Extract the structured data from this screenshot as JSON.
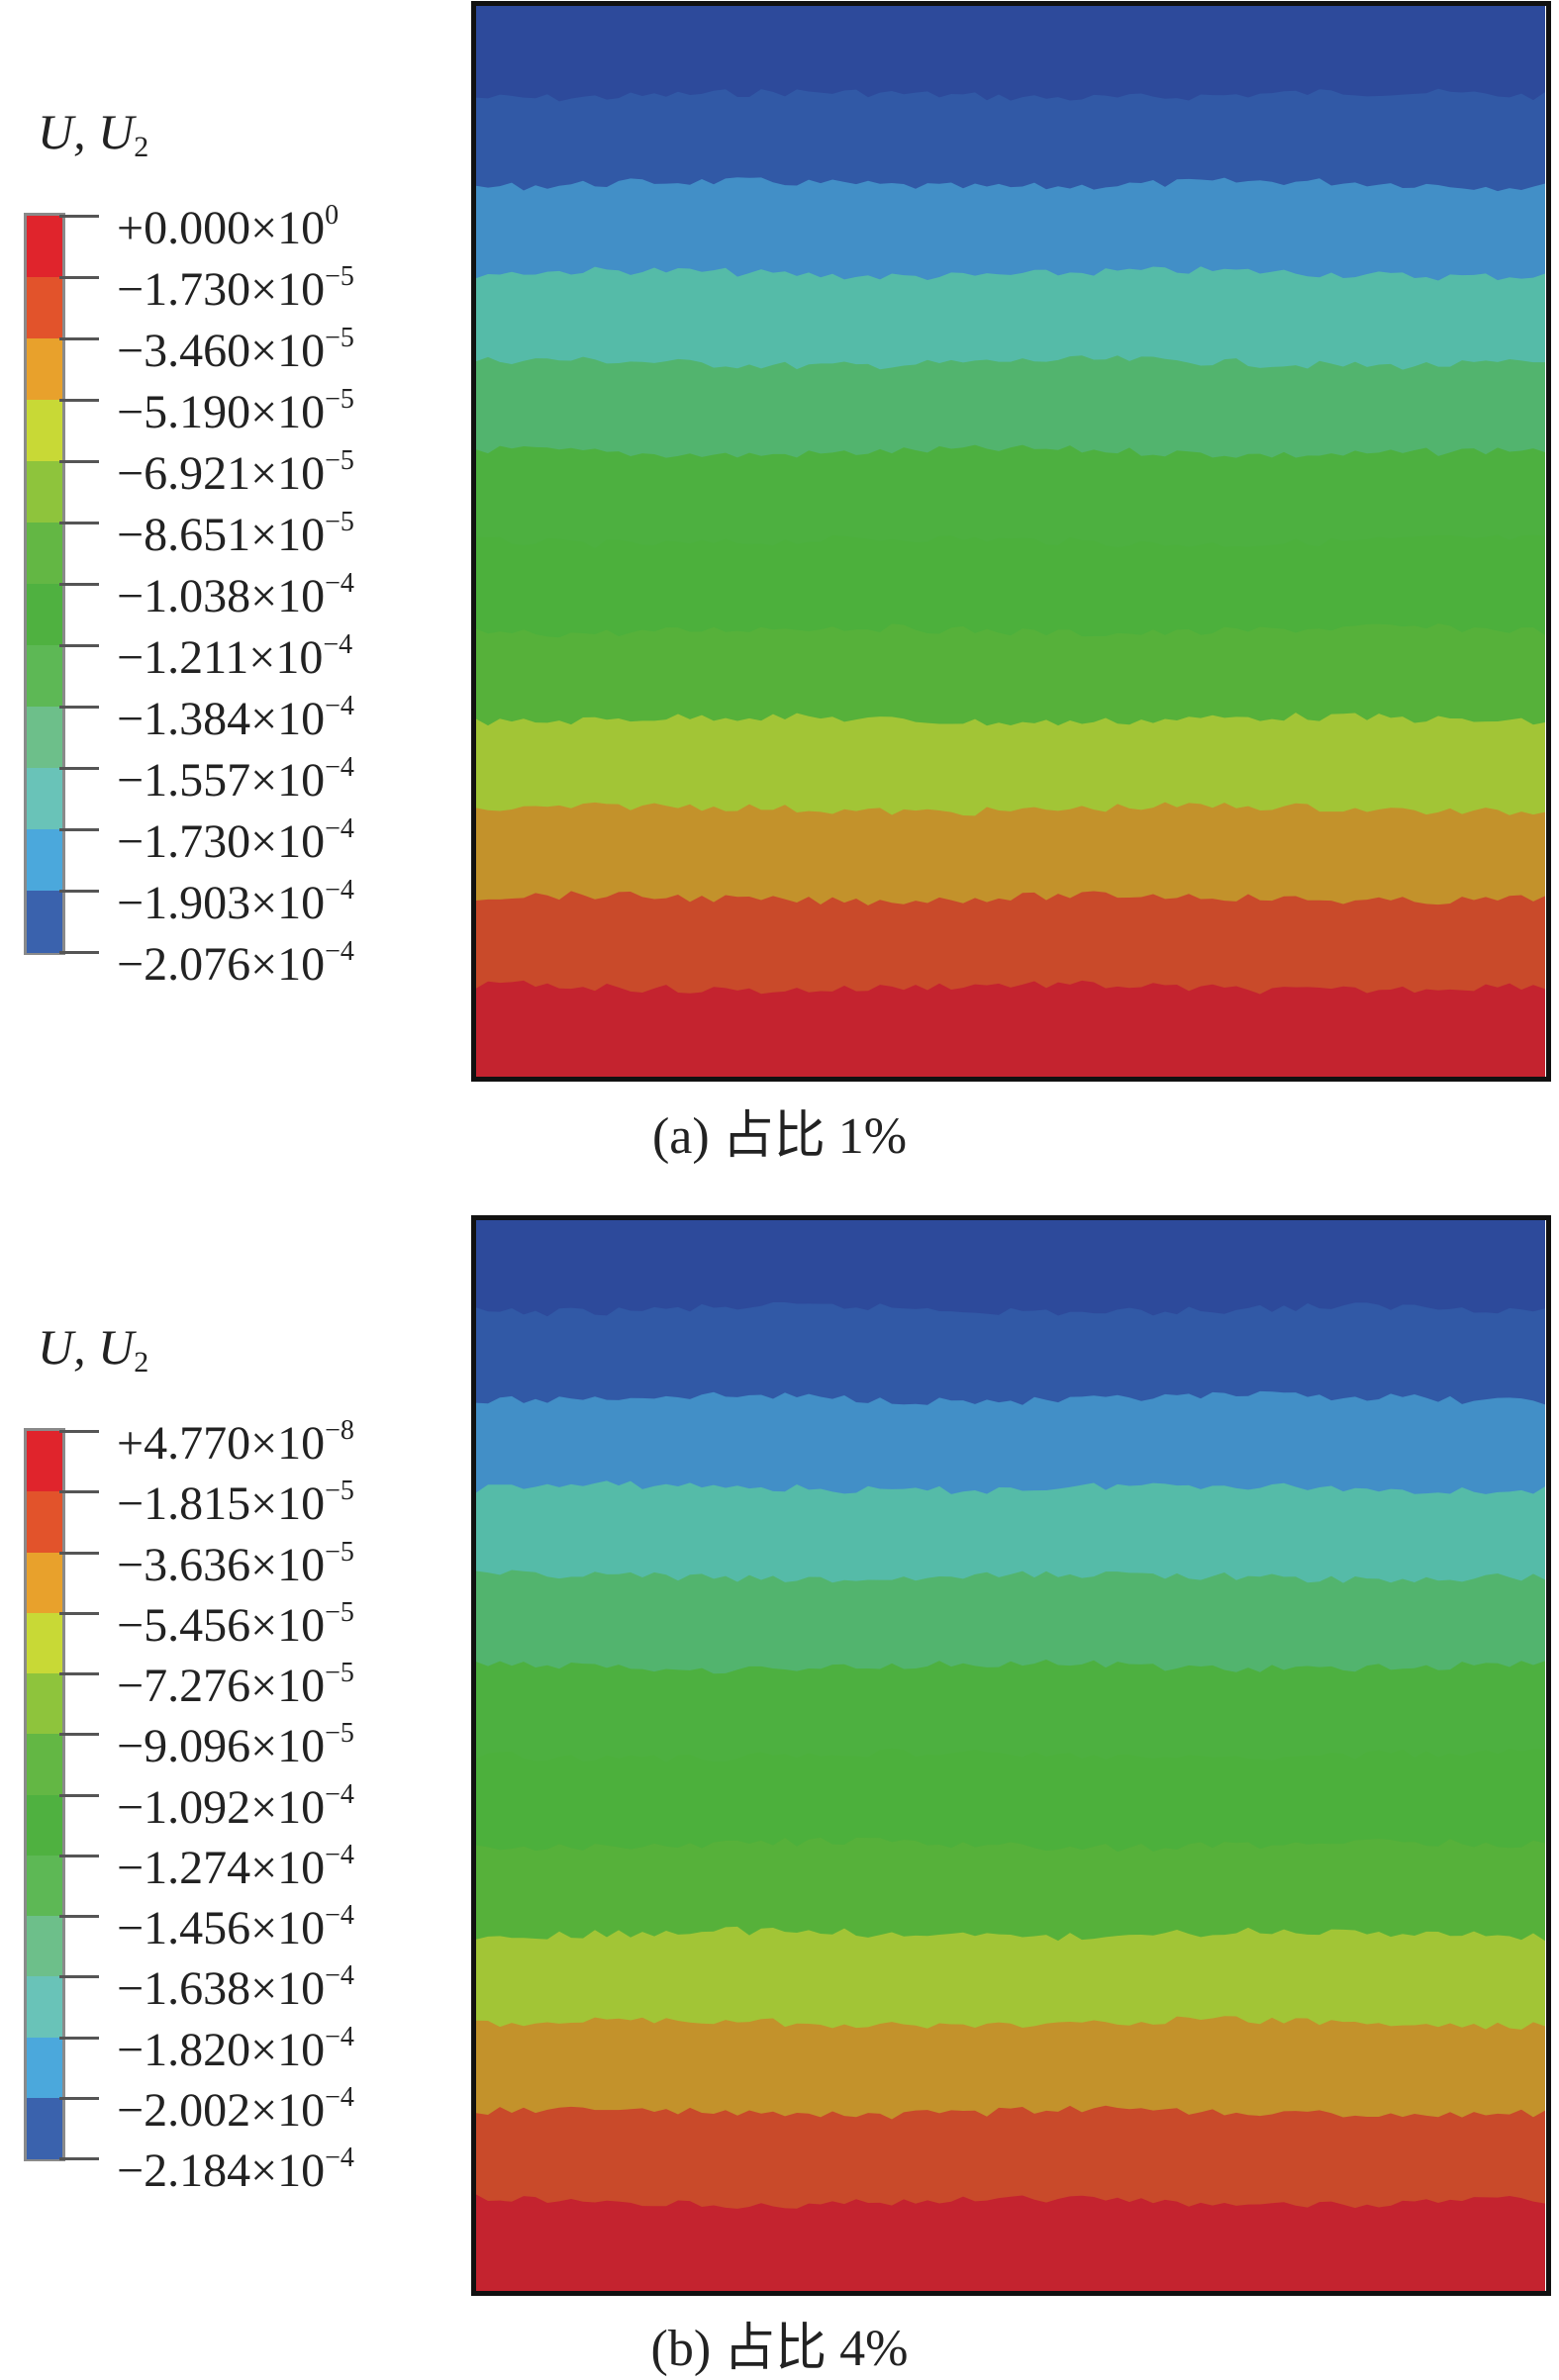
{
  "figures": [
    {
      "caption": "(a) 占比 1%",
      "legend": {
        "title_u": "U",
        "title_u2": "U",
        "title_sub": "2",
        "ticks": [
          {
            "mant": "+0.000×10",
            "exp": "0"
          },
          {
            "mant": "−1.730×10",
            "exp": "−5"
          },
          {
            "mant": "−3.460×10",
            "exp": "−5"
          },
          {
            "mant": "−5.190×10",
            "exp": "−5"
          },
          {
            "mant": "−6.921×10",
            "exp": "−5"
          },
          {
            "mant": "−8.651×10",
            "exp": "−5"
          },
          {
            "mant": "−1.038×10",
            "exp": "−4"
          },
          {
            "mant": "−1.211×10",
            "exp": "−4"
          },
          {
            "mant": "−1.384×10",
            "exp": "−4"
          },
          {
            "mant": "−1.557×10",
            "exp": "−4"
          },
          {
            "mant": "−1.730×10",
            "exp": "−4"
          },
          {
            "mant": "−1.903×10",
            "exp": "−4"
          },
          {
            "mant": "−2.076×10",
            "exp": "−4"
          }
        ]
      },
      "bands": [
        "#2d4a9b",
        "#3159a6",
        "#428fc7",
        "#55bba8",
        "#52b46e",
        "#4db040",
        "#4cb03c",
        "#56b13a",
        "#a2c536",
        "#c3922b",
        "#c94a2a",
        "#c4232f"
      ]
    },
    {
      "caption": "(b) 占比 4%",
      "legend": {
        "title_u": "U",
        "title_u2": "U",
        "title_sub": "2",
        "ticks": [
          {
            "mant": "+4.770×10",
            "exp": "−8"
          },
          {
            "mant": "−1.815×10",
            "exp": "−5"
          },
          {
            "mant": "−3.636×10",
            "exp": "−5"
          },
          {
            "mant": "−5.456×10",
            "exp": "−5"
          },
          {
            "mant": "−7.276×10",
            "exp": "−5"
          },
          {
            "mant": "−9.096×10",
            "exp": "−5"
          },
          {
            "mant": "−1.092×10",
            "exp": "−4"
          },
          {
            "mant": "−1.274×10",
            "exp": "−4"
          },
          {
            "mant": "−1.456×10",
            "exp": "−4"
          },
          {
            "mant": "−1.638×10",
            "exp": "−4"
          },
          {
            "mant": "−1.820×10",
            "exp": "−4"
          },
          {
            "mant": "−2.002×10",
            "exp": "−4"
          },
          {
            "mant": "−2.184×10",
            "exp": "−4"
          }
        ]
      },
      "bands": [
        "#2d4a9b",
        "#3159a6",
        "#428fc7",
        "#55bba8",
        "#52b46e",
        "#4db040",
        "#4cb03c",
        "#56b13a",
        "#a2c536",
        "#c3922b",
        "#c94a2a",
        "#c4232f"
      ]
    }
  ],
  "colorbar_colors": [
    "#e0242c",
    "#e2532b",
    "#e8a12c",
    "#c8d936",
    "#8ec43c",
    "#63b744",
    "#4fb140",
    "#5db855",
    "#6dbf8a",
    "#69c3b8",
    "#4ba8dc",
    "#3a62ad",
    "#2d4f9e"
  ]
}
